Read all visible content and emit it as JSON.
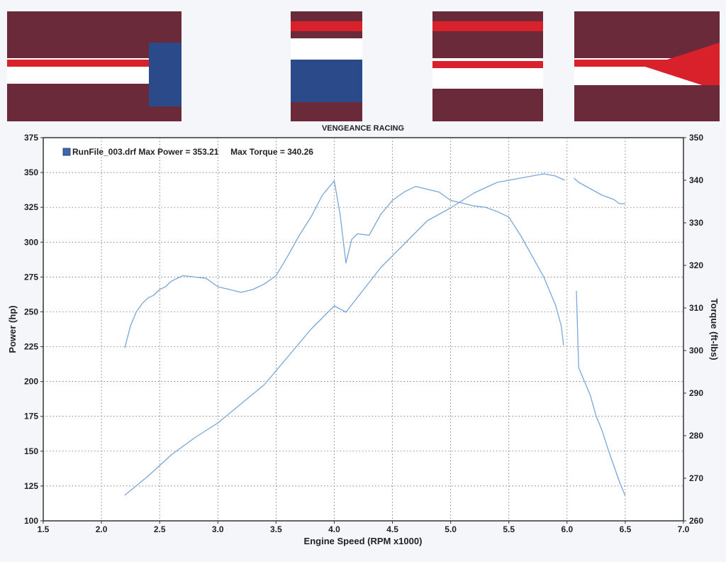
{
  "header": {
    "caption": "VENGEANCE RACING",
    "banner_colors": {
      "dark": "#6b2a3a",
      "red": "#d8212b",
      "white": "#ffffff",
      "car_blue": "#2a4a8a"
    }
  },
  "chart_data": {
    "type": "line",
    "legend_label": "RunFile_003.drf Max Power = 353.21     Max Torque = 340.26",
    "xlabel": "Engine Speed (RPM x1000)",
    "ylabel_left": "Power (hp)",
    "ylabel_right": "Torque (ft-lbs)",
    "xlim": [
      1.5,
      7.0
    ],
    "ylim_left": [
      100,
      375
    ],
    "ylim_right": [
      260,
      350
    ],
    "x_ticks": [
      "1.5",
      "2.0",
      "2.5",
      "3.0",
      "3.5",
      "4.0",
      "4.5",
      "5.0",
      "5.5",
      "6.0",
      "6.5",
      "7.0"
    ],
    "y_ticks_left": [
      "100",
      "125",
      "150",
      "175",
      "200",
      "225",
      "250",
      "275",
      "300",
      "325",
      "350",
      "375"
    ],
    "y_ticks_right": [
      "260",
      "270",
      "280",
      "290",
      "300",
      "310",
      "320",
      "330",
      "340",
      "350"
    ],
    "grid": true,
    "line_color": "#7aa6d8",
    "series": [
      {
        "axis": "left",
        "x": [
          2.2,
          2.25,
          2.3,
          2.35,
          2.4,
          2.45,
          2.5,
          2.55,
          2.6,
          2.7,
          2.8,
          2.9,
          3.0,
          3.1,
          3.2,
          3.3,
          3.4,
          3.5,
          3.6,
          3.7,
          3.8,
          3.9,
          4.0,
          4.05,
          4.1,
          4.15,
          4.2,
          4.3,
          4.4,
          4.5,
          4.6,
          4.7,
          4.8,
          4.9,
          5.0,
          5.1,
          5.2,
          5.3,
          5.4,
          5.5,
          5.6,
          5.7,
          5.8,
          5.9,
          5.95,
          5.97
        ],
        "y": [
          224,
          240,
          250,
          256,
          260,
          262,
          266,
          268,
          272,
          276,
          275,
          274,
          268,
          266,
          264,
          266,
          270,
          276,
          290,
          305,
          318,
          334,
          344,
          320,
          285,
          302,
          306,
          305,
          320,
          330,
          336,
          340,
          338,
          336,
          330,
          328,
          326,
          325,
          322,
          318,
          305,
          290,
          275,
          255,
          240,
          226
        ]
      },
      {
        "axis": "right",
        "x": [
          2.2,
          2.4,
          2.6,
          2.8,
          3.0,
          3.2,
          3.4,
          3.6,
          3.8,
          4.0,
          4.1,
          4.2,
          4.4,
          4.6,
          4.8,
          5.0,
          5.2,
          5.4,
          5.6,
          5.8,
          5.9,
          5.98
        ],
        "y": [
          266,
          270.5,
          275.5,
          279.5,
          283,
          287.5,
          292,
          298.5,
          305,
          310.5,
          309,
          312.5,
          319.5,
          325,
          330.5,
          333.5,
          337,
          339.5,
          340.5,
          341.5,
          341,
          340
        ]
      },
      {
        "axis": "right",
        "x": [
          6.06,
          6.1,
          6.2,
          6.3,
          6.4,
          6.45,
          6.5
        ],
        "y": [
          340.5,
          339.5,
          338,
          336.5,
          335.5,
          334.5,
          334.5
        ]
      },
      {
        "axis": "left",
        "x": [
          6.08,
          6.1,
          6.15,
          6.2,
          6.25,
          6.3,
          6.35,
          6.4,
          6.45,
          6.5
        ],
        "y": [
          265,
          210,
          200,
          190,
          175,
          165,
          152,
          140,
          128,
          118
        ]
      }
    ]
  }
}
